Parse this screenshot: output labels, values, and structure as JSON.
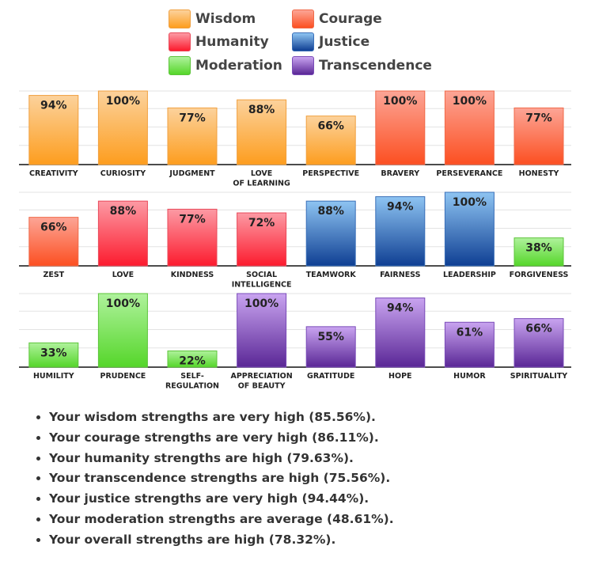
{
  "legend": [
    {
      "name": "Wisdom",
      "color": "#fdb55c"
    },
    {
      "name": "Courage",
      "color": "#fa6b4a"
    },
    {
      "name": "Humanity",
      "color": "#fb4a5e"
    },
    {
      "name": "Justice",
      "color": "#2e82d6"
    },
    {
      "name": "Moderation",
      "color": "#6fdc46"
    },
    {
      "name": "Transcendence",
      "color": "#9a5cd0"
    }
  ],
  "chart_data": {
    "type": "bar",
    "ylim": [
      0,
      100
    ],
    "grid": true,
    "legend_position": "top",
    "rows": [
      [
        {
          "label": "CREATIVITY",
          "value": 94,
          "category": "Wisdom"
        },
        {
          "label": "CURIOSITY",
          "value": 100,
          "category": "Wisdom"
        },
        {
          "label": "JUDGMENT",
          "value": 77,
          "category": "Wisdom"
        },
        {
          "label": "LOVE\nOF LEARNING",
          "value": 88,
          "category": "Wisdom"
        },
        {
          "label": "PERSPECTIVE",
          "value": 66,
          "category": "Wisdom"
        },
        {
          "label": "BRAVERY",
          "value": 100,
          "category": "Courage"
        },
        {
          "label": "PERSEVERANCE",
          "value": 100,
          "category": "Courage"
        },
        {
          "label": "HONESTY",
          "value": 77,
          "category": "Courage"
        }
      ],
      [
        {
          "label": "ZEST",
          "value": 66,
          "category": "Courage"
        },
        {
          "label": "LOVE",
          "value": 88,
          "category": "Humanity"
        },
        {
          "label": "KINDNESS",
          "value": 77,
          "category": "Humanity"
        },
        {
          "label": "SOCIAL\nINTELLIGENCE",
          "value": 72,
          "category": "Humanity"
        },
        {
          "label": "TEAMWORK",
          "value": 88,
          "category": "Justice"
        },
        {
          "label": "FAIRNESS",
          "value": 94,
          "category": "Justice"
        },
        {
          "label": "LEADERSHIP",
          "value": 100,
          "category": "Justice"
        },
        {
          "label": "FORGIVENESS",
          "value": 38,
          "category": "Moderation"
        }
      ],
      [
        {
          "label": "HUMILITY",
          "value": 33,
          "category": "Moderation"
        },
        {
          "label": "PRUDENCE",
          "value": 100,
          "category": "Moderation"
        },
        {
          "label": "SELF-\nREGULATION",
          "value": 22,
          "category": "Moderation"
        },
        {
          "label": "APPRECIATION\nOF BEAUTY",
          "value": 100,
          "category": "Transcendence"
        },
        {
          "label": "GRATITUDE",
          "value": 55,
          "category": "Transcendence"
        },
        {
          "label": "HOPE",
          "value": 94,
          "category": "Transcendence"
        },
        {
          "label": "HUMOR",
          "value": 61,
          "category": "Transcendence"
        },
        {
          "label": "SPIRITUALITY",
          "value": 66,
          "category": "Transcendence"
        }
      ]
    ]
  },
  "summary": [
    "Your wisdom strengths are very high (85.56%).",
    "Your courage strengths are very high (86.11%).",
    "Your humanity strengths are high (79.63%).",
    "Your transcendence strengths are high (75.56%).",
    "Your justice strengths are very high (94.44%).",
    "Your moderation strengths are average (48.61%).",
    "Your overall strengths are high (78.32%)."
  ]
}
